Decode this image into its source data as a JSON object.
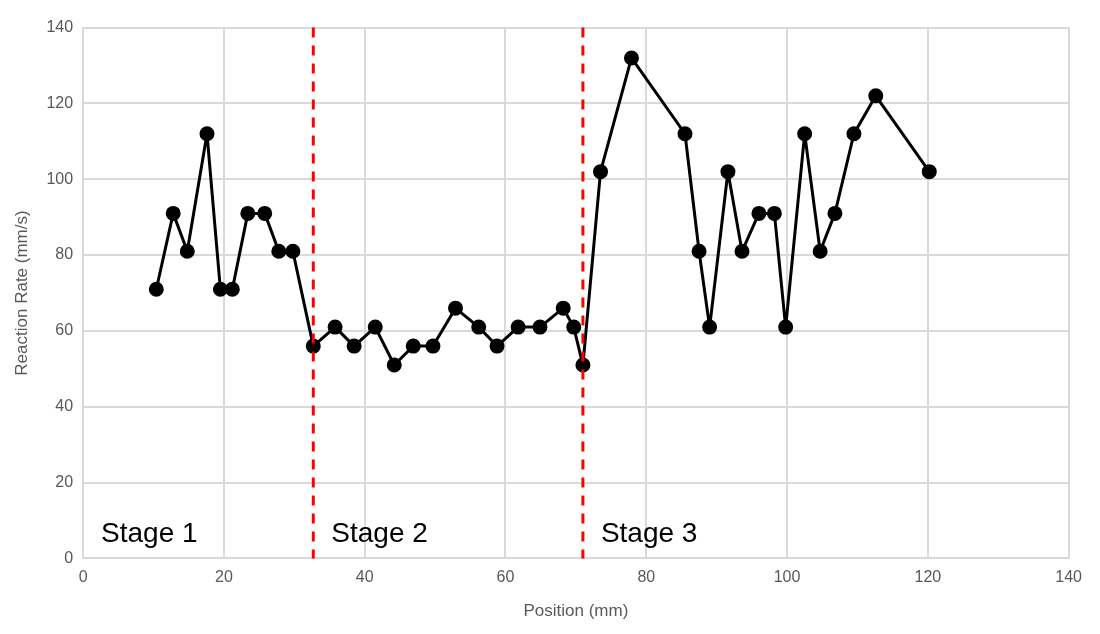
{
  "chart_data": {
    "type": "line",
    "xlabel": "Position (mm)",
    "ylabel": "Reaction Rate (mm/s)",
    "x": [
      10.4,
      12.8,
      14.8,
      17.6,
      19.5,
      21.2,
      23.4,
      25.8,
      27.8,
      29.8,
      32.7,
      35.8,
      38.5,
      41.5,
      44.2,
      46.9,
      49.7,
      52.9,
      56.2,
      58.8,
      61.8,
      64.9,
      68.2,
      69.7,
      71.0,
      73.5,
      77.9,
      85.5,
      87.5,
      89.0,
      91.6,
      93.6,
      96.0,
      98.2,
      99.8,
      102.5,
      104.7,
      106.8,
      109.5,
      112.6,
      120.2
    ],
    "series": [
      {
        "color": "#000000",
        "values": [
          71,
          91,
          81,
          112,
          71,
          71,
          91,
          91,
          81,
          81,
          56,
          61,
          56,
          61,
          51,
          56,
          56,
          66,
          61,
          56,
          61,
          61,
          66,
          61,
          51,
          102,
          132,
          112,
          81,
          61,
          102,
          81,
          91,
          91,
          61,
          112,
          81,
          91,
          112,
          122,
          102
        ]
      }
    ],
    "xlim": [
      0,
      140
    ],
    "xticks": [
      0,
      20,
      40,
      60,
      80,
      100,
      120,
      140
    ],
    "ylim": [
      0,
      140
    ],
    "yticks": [
      0,
      20,
      40,
      60,
      80,
      100,
      120,
      140
    ],
    "grid": true,
    "marker": "circle",
    "line_style": "solid",
    "legend": false,
    "ref_lines": [
      {
        "axis": "x",
        "value": 32.7,
        "color": "#ff0000",
        "line_style": "dashed"
      },
      {
        "axis": "x",
        "value": 71.0,
        "color": "#ff0000",
        "line_style": "dashed"
      }
    ],
    "annotations": [
      "Stage 1",
      "Stage 2",
      "Stage 3"
    ]
  }
}
